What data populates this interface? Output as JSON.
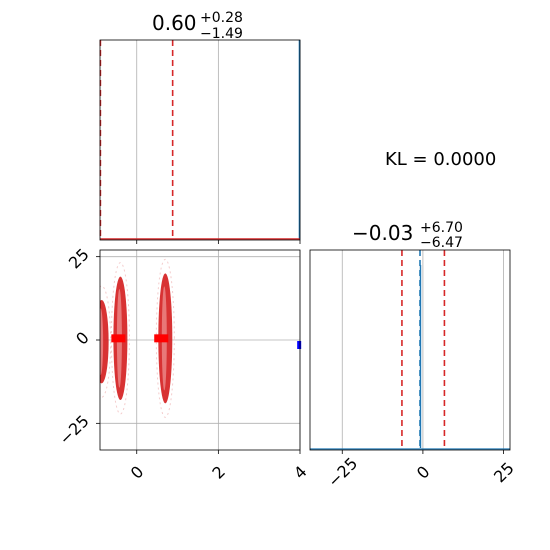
{
  "chart_data": {
    "type": "corner",
    "parameters": [
      "param_1",
      "param_2"
    ],
    "marginal_1": {
      "title_value": "0.60",
      "title_plus": "+0.28",
      "title_minus": "−1.49",
      "quantiles": [
        -0.89,
        0.88
      ],
      "reference_line": 4.0,
      "xlim": [
        -0.9,
        4.0
      ]
    },
    "marginal_2": {
      "title_value": "−0.03",
      "title_plus": "+6.70",
      "title_minus": "−6.47",
      "quantiles": [
        -6.5,
        6.67
      ],
      "reference_line": -0.9,
      "xlim": [
        -35,
        27
      ]
    },
    "joint": {
      "xlim": [
        -0.9,
        4.0
      ],
      "ylim": [
        -33,
        27
      ],
      "x_ticks": [
        0,
        2,
        4
      ],
      "y_ticks": [
        -25,
        0,
        25
      ],
      "clusters": [
        {
          "x": -0.86,
          "y_low": -13,
          "y_high": 12
        },
        {
          "x": -0.4,
          "y_low": -18,
          "y_high": 19
        },
        {
          "x": 0.7,
          "y_low": -19,
          "y_high": 20
        }
      ],
      "markers": [
        {
          "x": -0.45,
          "y": 0.5,
          "color": "#ff0000"
        },
        {
          "x": 0.6,
          "y": 0.5,
          "color": "#ff0000"
        },
        {
          "x": 3.98,
          "y": -1.5,
          "color": "#0000ff"
        }
      ]
    },
    "x_ticks_param_2": [
      -25,
      0,
      25
    ],
    "annotation": "KL = 0.0000",
    "colors": {
      "samples": "#d62728",
      "quantile_line": "#d62728",
      "reference": "#1f77b4",
      "marker": "#ff0000",
      "alt_marker": "#0000ff"
    },
    "grid": true
  }
}
